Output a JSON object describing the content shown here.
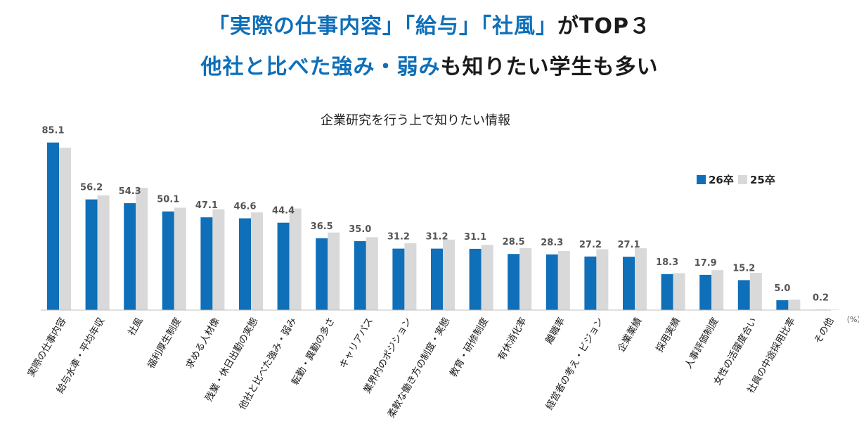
{
  "headline": {
    "line1_blue": "「実際の仕事内容」「給与」「社風」",
    "line1_black": "がTOP３",
    "line2_blue": "他社と比べた強み・弱み",
    "line2_black": "も知りたい学生も多い"
  },
  "colors": {
    "series_26": "#0f6fb8",
    "series_25": "#d9d9d9",
    "axis": "#bfbfbf"
  },
  "chart_data": {
    "type": "bar",
    "title": "企業研究を行う上で知りたい情報",
    "unit": "（%）",
    "ylim": [
      0,
      100
    ],
    "legend_position": "top-right",
    "categories": [
      "実際の仕事内容",
      "給与水準・平均年収",
      "社風",
      "福利厚生制度",
      "求める人材像",
      "残業・休日出勤の実態",
      "他社と比べた強み・弱み",
      "転勤・異動の多さ",
      "キャリアパス",
      "業界内のポジション",
      "柔軟な働き方の制度・実態",
      "教育・研修制度",
      "有休消化率",
      "離職率",
      "経営者の考え・ビジョン",
      "企業業績",
      "採用実績",
      "人事評価制度",
      "女性の活躍度合い",
      "社員の中途採用比率",
      "その他"
    ],
    "series": [
      {
        "name": "26卒",
        "values": [
          85.1,
          56.2,
          54.3,
          50.1,
          47.1,
          46.6,
          44.4,
          36.5,
          35.0,
          31.2,
          31.2,
          31.1,
          28.5,
          28.3,
          27.2,
          27.1,
          18.3,
          17.9,
          15.2,
          5.0,
          0.2
        ]
      },
      {
        "name": "25卒",
        "values": [
          82.5,
          58.3,
          62.1,
          52.0,
          51.2,
          49.6,
          51.6,
          39.4,
          37.0,
          34.0,
          35.8,
          33.1,
          31.5,
          30.0,
          30.9,
          31.4,
          18.8,
          20.3,
          18.9,
          5.3,
          0.2
        ]
      }
    ],
    "value_labels": [
      "85.1",
      "56.2",
      "54.3",
      "50.1",
      "47.1",
      "46.6",
      "44.4",
      "36.5",
      "35.0",
      "31.2",
      "31.2",
      "31.1",
      "28.5",
      "28.3",
      "27.2",
      "27.1",
      "18.3",
      "17.9",
      "15.2",
      "5.0",
      "0.2"
    ]
  }
}
